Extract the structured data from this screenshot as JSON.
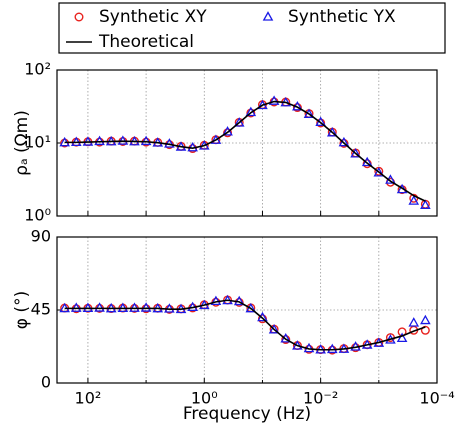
{
  "chart_data": [
    {
      "type": "line",
      "yscale": "log",
      "xscale": "log",
      "ylabel": "ρₐ (Ωm)",
      "grid": true,
      "x": [
        251.2,
        158.5,
        100,
        63.1,
        39.8,
        25.1,
        15.85,
        10,
        6.31,
        3.98,
        2.51,
        1.585,
        1,
        0.631,
        0.398,
        0.251,
        0.1585,
        0.1,
        0.0631,
        0.0398,
        0.0251,
        0.01585,
        0.01,
        0.00631,
        0.00398,
        0.00251,
        0.001585,
        0.001,
        0.000631,
        0.000398,
        0.000251,
        0.0001585
      ],
      "xlim": [
        340,
        0.0001
      ],
      "xticks": [
        100,
        10,
        1,
        0.1,
        0.01,
        0.001,
        0.0001
      ],
      "ylim": [
        1,
        100
      ],
      "yticks": [
        {
          "value": 1,
          "label": "10⁰"
        },
        {
          "value": 10,
          "label": "10¹"
        },
        {
          "value": 100,
          "label": "10²"
        }
      ],
      "series": [
        {
          "name": "Synthetic XY",
          "color": "#e8201c",
          "marker": "circle",
          "values": [
            10.0,
            10.3,
            10.4,
            10.3,
            10.6,
            10.5,
            10.6,
            10.3,
            10.2,
            9.5,
            9.0,
            8.4,
            9.3,
            11.1,
            13.8,
            19.2,
            25.8,
            33.5,
            36.5,
            36.4,
            30.6,
            25.3,
            18.8,
            14.1,
            9.9,
            7.3,
            5.2,
            4.1,
            2.9,
            2.3,
            1.75,
            1.45
          ]
        },
        {
          "name": "Synthetic YX",
          "color": "#1a1ae6",
          "marker": "triangle",
          "values": [
            10.1,
            10.2,
            10.3,
            10.5,
            10.4,
            10.6,
            10.4,
            10.5,
            10.0,
            9.7,
            8.8,
            8.6,
            9.1,
            10.9,
            14.2,
            18.8,
            26.2,
            32.6,
            37.4,
            35.6,
            31.3,
            24.7,
            19.2,
            13.8,
            10.1,
            7.1,
            5.4,
            3.9,
            3.1,
            2.3,
            1.6,
            1.4
          ]
        },
        {
          "name": "Theoretical",
          "color": "#000000",
          "marker": "line",
          "values": [
            10.2,
            10.2,
            10.3,
            10.4,
            10.5,
            10.6,
            10.5,
            10.4,
            10.1,
            9.6,
            8.9,
            8.5,
            9.2,
            11,
            14,
            19,
            26,
            33,
            37,
            36,
            31,
            25,
            19,
            14,
            10,
            7.2,
            5.3,
            4.0,
            3.0,
            2.4,
            1.9,
            1.6
          ]
        }
      ]
    },
    {
      "type": "line",
      "xscale": "log",
      "ylabel": "φ (°)",
      "xlabel": "Frequency (Hz)",
      "grid": true,
      "x": [
        251.2,
        158.5,
        100,
        63.1,
        39.8,
        25.1,
        15.85,
        10,
        6.31,
        3.98,
        2.51,
        1.585,
        1,
        0.631,
        0.398,
        0.251,
        0.1585,
        0.1,
        0.0631,
        0.0398,
        0.0251,
        0.01585,
        0.01,
        0.00631,
        0.00398,
        0.00251,
        0.001585,
        0.001,
        0.000631,
        0.000398,
        0.000251,
        0.0001585
      ],
      "xlim": [
        340,
        0.0001
      ],
      "xticks": [
        {
          "value": 100,
          "label": "10²"
        },
        {
          "value": 1,
          "label": "10⁰"
        },
        {
          "value": 0.01,
          "label": "10⁻²"
        },
        {
          "value": 0.0001,
          "label": "10⁻⁴"
        }
      ],
      "xminor": [
        10,
        0.1,
        0.001
      ],
      "ylim": [
        0,
        90
      ],
      "yticks": [
        0,
        45,
        90
      ],
      "series": [
        {
          "color": "#e8201c",
          "marker": "circle",
          "values": [
            46.2,
            45.8,
            46.1,
            46,
            45.9,
            46.2,
            46,
            45.8,
            46.1,
            45.4,
            45.7,
            46.3,
            48.2,
            49.8,
            51.2,
            49.7,
            46.3,
            39.6,
            33.2,
            26.8,
            23.1,
            20.8,
            20.6,
            20.3,
            21.2,
            21.8,
            23.6,
            25,
            28,
            31.5,
            32.5,
            32.5
          ]
        },
        {
          "color": "#1a1ae6",
          "marker": "triangle",
          "values": [
            45.9,
            46.1,
            46,
            46.2,
            45.8,
            46,
            46.1,
            46.2,
            45.8,
            45.6,
            45.3,
            46.6,
            47.8,
            50.3,
            50.8,
            50.2,
            45.8,
            40.3,
            32.8,
            27.2,
            22.8,
            21.2,
            20.4,
            20.7,
            20.8,
            22.2,
            23.4,
            24.5,
            26.5,
            27.5,
            37,
            38.5
          ]
        },
        {
          "color": "#000000",
          "marker": "line",
          "values": [
            46,
            46,
            46,
            46,
            46,
            46,
            46,
            46,
            46,
            45.5,
            45.5,
            46.5,
            48,
            50,
            51,
            50,
            46,
            40,
            33,
            27,
            23,
            21,
            20.5,
            20.5,
            21,
            22,
            23.5,
            25,
            27,
            29,
            32,
            34.5
          ]
        }
      ]
    }
  ]
}
